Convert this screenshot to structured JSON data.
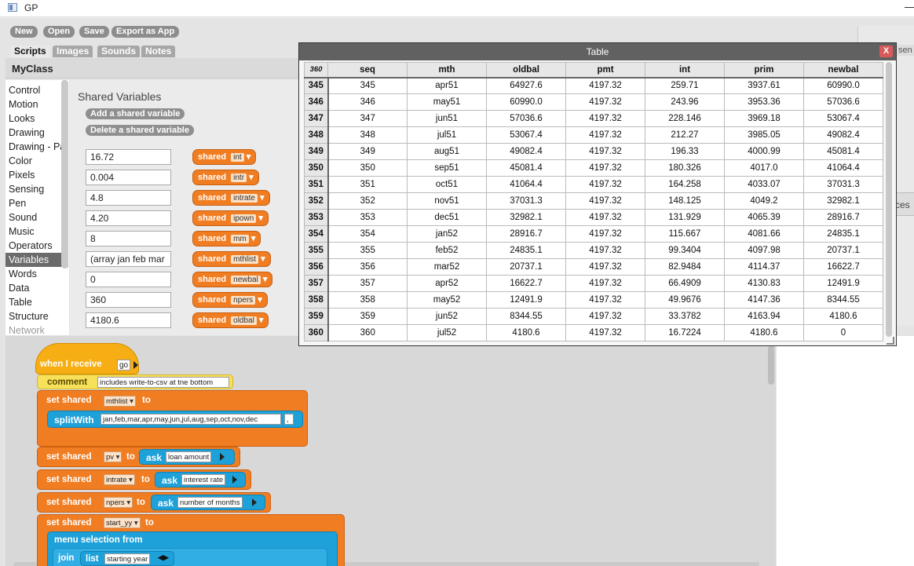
{
  "window": {
    "title": "GP"
  },
  "toolbar": {
    "new": "New",
    "open": "Open",
    "save": "Save",
    "export": "Export as App"
  },
  "tabs": [
    "Scripts",
    "Images",
    "Sounds",
    "Notes"
  ],
  "class_name": "MyClass",
  "categories": [
    "Control",
    "Motion",
    "Looks",
    "Drawing",
    "Drawing - Pa",
    "Color",
    "Pixels",
    "Sensing",
    "Pen",
    "Sound",
    "Music",
    "Operators",
    "Variables",
    "Words",
    "Data",
    "Table",
    "Structure",
    "Network"
  ],
  "selected_category": "Variables",
  "palette": {
    "title": "Shared Variables",
    "add_btn": "Add a shared variable",
    "delete_btn": "Delete a shared variable",
    "shared_word": "shared",
    "vars": [
      {
        "value": "16.72",
        "name": "int"
      },
      {
        "value": "0.004",
        "name": "intr"
      },
      {
        "value": "4.8",
        "name": "intrate"
      },
      {
        "value": "4.20",
        "name": "ipown"
      },
      {
        "value": "8",
        "name": "mm"
      },
      {
        "value": "(array jan feb mar",
        "name": "mthlist"
      },
      {
        "value": "0",
        "name": "newbal"
      },
      {
        "value": "360",
        "name": "npers"
      },
      {
        "value": "4180.6",
        "name": "oldbal"
      }
    ]
  },
  "script": {
    "hat_label": "when I receive",
    "hat_msg": "go",
    "comment_label": "comment",
    "comment_text": "includes write-to-csv at tne bottom",
    "set_label": "set shared",
    "to_label": "to",
    "b1_var": "mthlist",
    "split_label": "splitWith",
    "split_text": "jan,feb,mar,apr,may,jun,jul,aug,sep,oct,nov,dec",
    "split_sep": ",",
    "b2_var": "pv",
    "ask_label": "ask",
    "b2_prompt": "loan amount",
    "b3_var": "intrate",
    "b3_prompt": "interest rate",
    "b4_var": "npers",
    "b4_prompt": "number of months",
    "b5_var": "start_yy",
    "menu_label": "menu selection from",
    "join_label": "join",
    "list_label": "list",
    "list_item": "starting year"
  },
  "table": {
    "title": "Table",
    "close": "X",
    "corner": "360",
    "columns": [
      "seq",
      "mth",
      "oldbal",
      "pmt",
      "int",
      "prim",
      "newbal"
    ],
    "rows": [
      {
        "idx": "345",
        "cells": [
          "345",
          "apr51",
          "64927.6",
          "4197.32",
          "259.71",
          "3937.61",
          "60990.0"
        ]
      },
      {
        "idx": "346",
        "cells": [
          "346",
          "may51",
          "60990.0",
          "4197.32",
          "243.96",
          "3953.36",
          "57036.6"
        ]
      },
      {
        "idx": "347",
        "cells": [
          "347",
          "jun51",
          "57036.6",
          "4197.32",
          "228.146",
          "3969.18",
          "53067.4"
        ]
      },
      {
        "idx": "348",
        "cells": [
          "348",
          "jul51",
          "53067.4",
          "4197.32",
          "212.27",
          "3985.05",
          "49082.4"
        ]
      },
      {
        "idx": "349",
        "cells": [
          "349",
          "aug51",
          "49082.4",
          "4197.32",
          "196.33",
          "4000.99",
          "45081.4"
        ]
      },
      {
        "idx": "350",
        "cells": [
          "350",
          "sep51",
          "45081.4",
          "4197.32",
          "180.326",
          "4017.0",
          "41064.4"
        ]
      },
      {
        "idx": "351",
        "cells": [
          "351",
          "oct51",
          "41064.4",
          "4197.32",
          "164.258",
          "4033.07",
          "37031.3"
        ]
      },
      {
        "idx": "352",
        "cells": [
          "352",
          "nov51",
          "37031.3",
          "4197.32",
          "148.125",
          "4049.2",
          "32982.1"
        ]
      },
      {
        "idx": "353",
        "cells": [
          "353",
          "dec51",
          "32982.1",
          "4197.32",
          "131.929",
          "4065.39",
          "28916.7"
        ]
      },
      {
        "idx": "354",
        "cells": [
          "354",
          "jan52",
          "28916.7",
          "4197.32",
          "115.667",
          "4081.66",
          "24835.1"
        ]
      },
      {
        "idx": "355",
        "cells": [
          "355",
          "feb52",
          "24835.1",
          "4197.32",
          "99.3404",
          "4097.98",
          "20737.1"
        ]
      },
      {
        "idx": "356",
        "cells": [
          "356",
          "mar52",
          "20737.1",
          "4197.32",
          "82.9484",
          "4114.37",
          "16622.7"
        ]
      },
      {
        "idx": "357",
        "cells": [
          "357",
          "apr52",
          "16622.7",
          "4197.32",
          "66.4909",
          "4130.83",
          "12491.9"
        ]
      },
      {
        "idx": "358",
        "cells": [
          "358",
          "may52",
          "12491.9",
          "4197.32",
          "49.9676",
          "4147.36",
          "8344.55"
        ]
      },
      {
        "idx": "359",
        "cells": [
          "359",
          "jun52",
          "8344.55",
          "4197.32",
          "33.3782",
          "4163.94",
          "4180.6"
        ]
      },
      {
        "idx": "360",
        "cells": [
          "360",
          "jul52",
          "4180.6",
          "4197.32",
          "16.7224",
          "4180.6",
          "0"
        ]
      }
    ]
  },
  "right_hint": "sen",
  "right_hint2": "ces"
}
